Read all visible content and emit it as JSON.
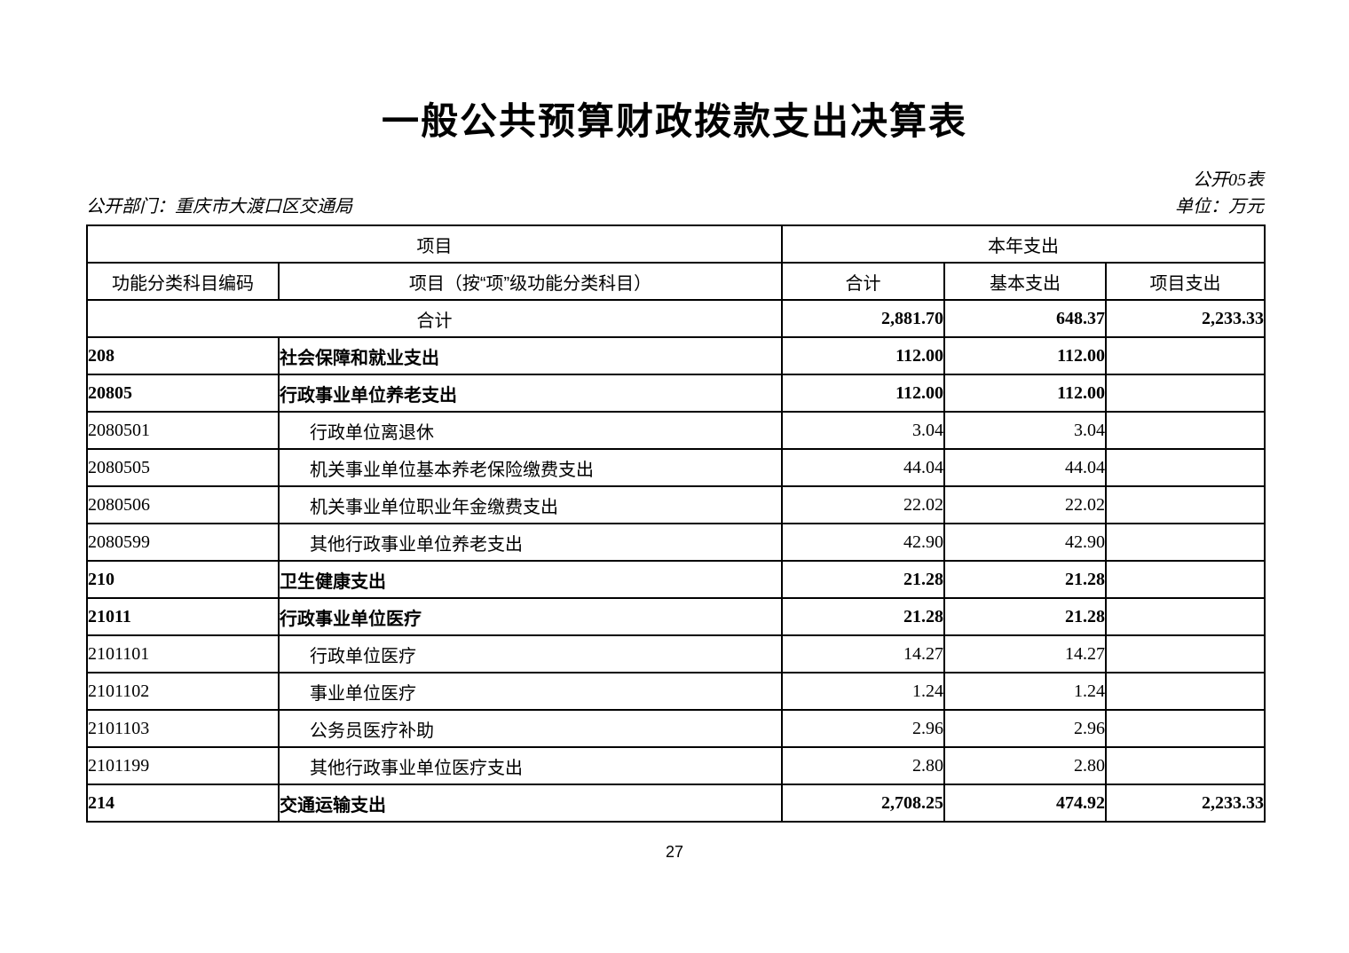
{
  "title": "一般公共预算财政拨款支出决算表",
  "meta": {
    "table_no": "公开05表",
    "department": "公开部门：重庆市大渡口区交通局",
    "unit": "单位：万元"
  },
  "table": {
    "header": {
      "group_project": "项目",
      "group_year_expenditure": "本年支出",
      "col_code": "功能分类科目编码",
      "col_name": "项目（按“项”级功能分类科目）",
      "col_total": "合计",
      "col_basic": "基本支出",
      "col_project": "项目支出"
    },
    "rows": [
      {
        "level": "total",
        "code": "",
        "name": "合计",
        "total": "2,881.70",
        "basic": "648.37",
        "project": "2,233.33"
      },
      {
        "level": "category",
        "code": "208",
        "name": "社会保障和就业支出",
        "total": "112.00",
        "basic": "112.00",
        "project": ""
      },
      {
        "level": "category",
        "code": "20805",
        "name": "行政事业单位养老支出",
        "total": "112.00",
        "basic": "112.00",
        "project": ""
      },
      {
        "level": "detail",
        "code": "2080501",
        "name": "行政单位离退休",
        "total": "3.04",
        "basic": "3.04",
        "project": ""
      },
      {
        "level": "detail",
        "code": "2080505",
        "name": "机关事业单位基本养老保险缴费支出",
        "total": "44.04",
        "basic": "44.04",
        "project": ""
      },
      {
        "level": "detail",
        "code": "2080506",
        "name": "机关事业单位职业年金缴费支出",
        "total": "22.02",
        "basic": "22.02",
        "project": ""
      },
      {
        "level": "detail",
        "code": "2080599",
        "name": "其他行政事业单位养老支出",
        "total": "42.90",
        "basic": "42.90",
        "project": ""
      },
      {
        "level": "category",
        "code": "210",
        "name": "卫生健康支出",
        "total": "21.28",
        "basic": "21.28",
        "project": ""
      },
      {
        "level": "category",
        "code": "21011",
        "name": "行政事业单位医疗",
        "total": "21.28",
        "basic": "21.28",
        "project": ""
      },
      {
        "level": "detail",
        "code": "2101101",
        "name": "行政单位医疗",
        "total": "14.27",
        "basic": "14.27",
        "project": ""
      },
      {
        "level": "detail",
        "code": "2101102",
        "name": "事业单位医疗",
        "total": "1.24",
        "basic": "1.24",
        "project": ""
      },
      {
        "level": "detail",
        "code": "2101103",
        "name": "公务员医疗补助",
        "total": "2.96",
        "basic": "2.96",
        "project": ""
      },
      {
        "level": "detail",
        "code": "2101199",
        "name": "其他行政事业单位医疗支出",
        "total": "2.80",
        "basic": "2.80",
        "project": ""
      },
      {
        "level": "category",
        "code": "214",
        "name": "交通运输支出",
        "total": "2,708.25",
        "basic": "474.92",
        "project": "2,233.33"
      }
    ]
  },
  "page_number": "27"
}
